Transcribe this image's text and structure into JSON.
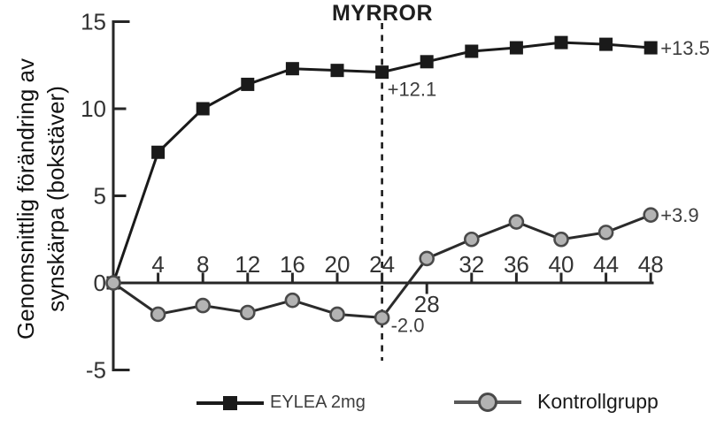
{
  "chart_data": {
    "type": "line",
    "title": "MYRROR",
    "ylabel": "Genomsnittlig förändring av synskärpa (bokstäver)",
    "ylabel_lines": [
      "Genomsnittlig förändring av",
      "synskärpa (bokstäver)"
    ],
    "xlabel": "",
    "x": [
      0,
      4,
      8,
      12,
      16,
      20,
      24,
      28,
      32,
      36,
      40,
      44,
      48
    ],
    "x_ticks": [
      4,
      8,
      12,
      16,
      20,
      24,
      28,
      32,
      36,
      40,
      44,
      48
    ],
    "x_ticks_label_below": [
      28
    ],
    "y_ticks": [
      -5,
      0,
      5,
      10,
      15
    ],
    "xlim": [
      0,
      48
    ],
    "ylim": [
      -5,
      15
    ],
    "grid": false,
    "dashed_line_x": 24,
    "legend_position": "bottom",
    "series": [
      {
        "name": "EYLEA 2mg",
        "marker": "square",
        "line_color": "#1a1a1a",
        "marker_color": "#1a1a1a",
        "values": [
          0,
          7.5,
          10.0,
          11.4,
          12.3,
          12.2,
          12.1,
          12.7,
          13.3,
          13.5,
          13.8,
          13.7,
          13.5
        ],
        "annotations": [
          {
            "week": 24,
            "text": "+12.1",
            "placement": "below"
          },
          {
            "week": 48,
            "text": "+13.5",
            "placement": "right"
          }
        ]
      },
      {
        "name": "Kontrollgrupp",
        "marker": "circle",
        "line_color": "#2b2b2b",
        "marker_color": "#b3b3b3",
        "marker_stroke": "#4a4a4a",
        "values": [
          0,
          -1.8,
          -1.3,
          -1.7,
          -1.0,
          -1.8,
          -2.0,
          1.4,
          2.5,
          3.5,
          2.5,
          2.9,
          3.9
        ],
        "annotations": [
          {
            "week": 24,
            "text": "-2.0",
            "placement": "below"
          },
          {
            "week": 48,
            "text": "+3.9",
            "placement": "right"
          }
        ]
      }
    ]
  },
  "colors": {
    "axis": "#262626",
    "tick_label": "#333333",
    "annotation": "#3d3d3d",
    "dashed_line": "#1a1a1a",
    "background": "#ffffff"
  }
}
